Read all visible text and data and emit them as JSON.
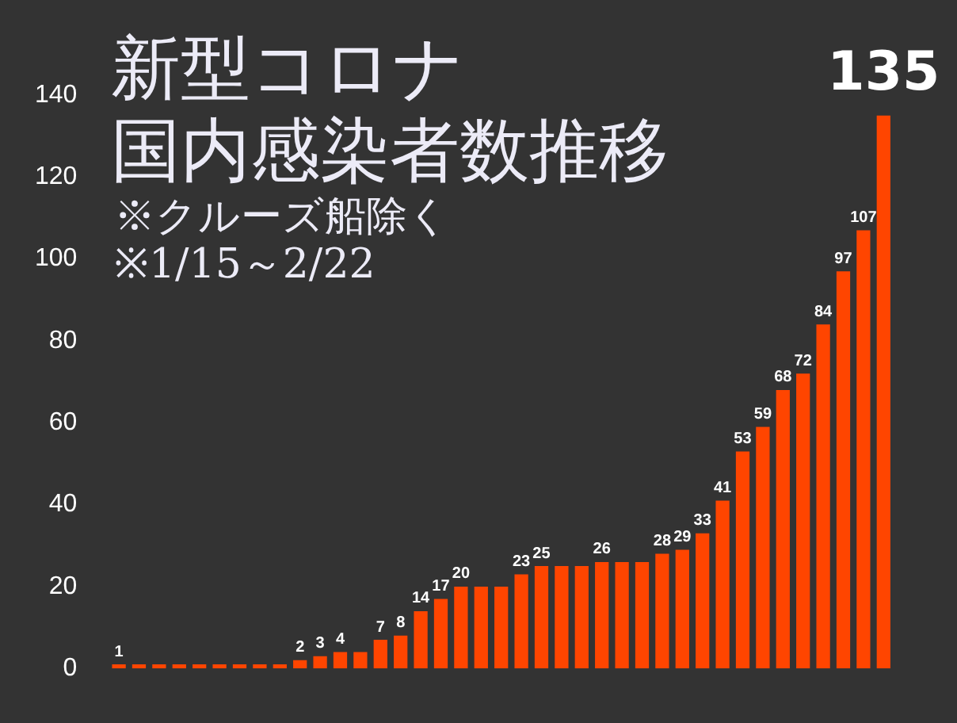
{
  "chart_data": {
    "type": "bar",
    "title": "新型コロナ",
    "subtitle": "国内感染者数推移",
    "annotations": [
      "※クルーズ船除く",
      "※1/15～2/22"
    ],
    "categories": [
      null,
      null,
      null,
      null,
      null,
      null,
      null,
      null,
      null,
      null,
      null,
      null,
      null,
      null,
      null,
      null,
      null,
      null,
      null,
      null,
      null,
      null,
      null,
      null,
      null,
      null,
      null,
      null,
      null,
      null,
      null,
      null,
      null,
      null,
      null,
      null,
      null,
      null,
      null
    ],
    "values": [
      1,
      1,
      1,
      1,
      1,
      1,
      1,
      1,
      1,
      2,
      3,
      4,
      4,
      7,
      8,
      14,
      17,
      20,
      20,
      20,
      23,
      25,
      25,
      25,
      26,
      26,
      26,
      28,
      29,
      33,
      41,
      53,
      59,
      68,
      72,
      84,
      97,
      107,
      135
    ],
    "value_labels": [
      "1",
      null,
      null,
      null,
      null,
      null,
      null,
      null,
      null,
      "2",
      "3",
      "4",
      null,
      "7",
      "8",
      "14",
      "17",
      "20",
      null,
      null,
      "23",
      "25",
      null,
      null,
      "26",
      null,
      null,
      "28",
      "29",
      "33",
      "41",
      "53",
      "59",
      "68",
      "72",
      "84",
      "97",
      "107",
      "135"
    ],
    "color": "#ff4500",
    "ylim": [
      0,
      140
    ],
    "yticks": [
      0,
      20,
      40,
      60,
      80,
      100,
      120,
      140
    ],
    "grid": false,
    "legend": false
  }
}
